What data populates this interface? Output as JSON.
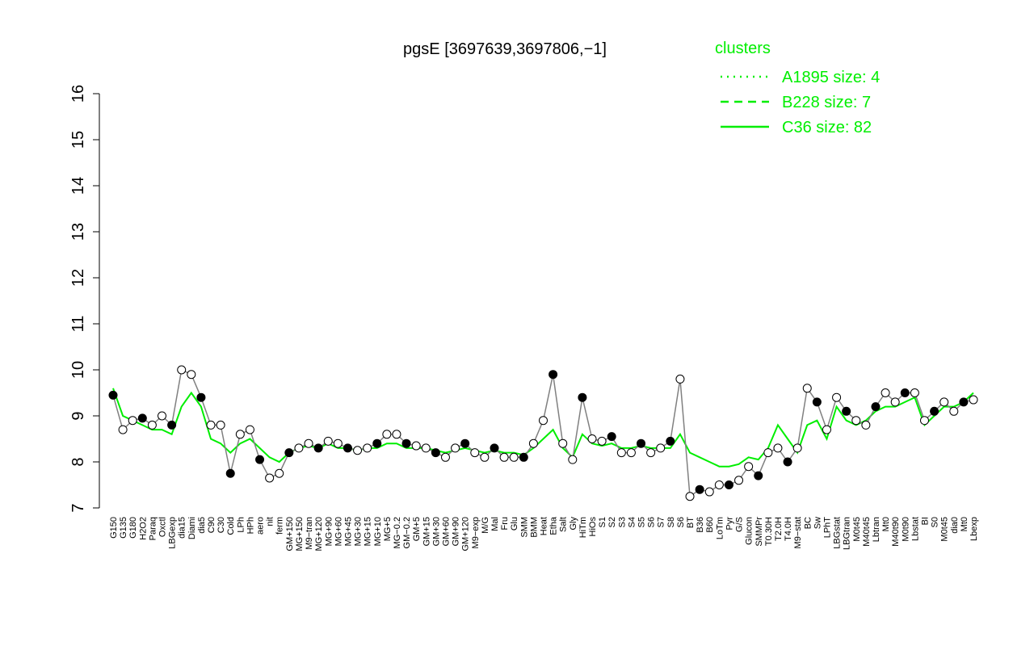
{
  "chart_data": {
    "type": "line",
    "title": "pgsE [3697639,3697806,−1]",
    "categories": [
      "G150",
      "G135",
      "G180",
      "H2O2",
      "Paraq",
      "Oxctl",
      "LBGexp",
      "dia15",
      "Diami",
      "dia5",
      "C90",
      "C30",
      "Cold",
      "LPh",
      "HPh",
      "aero",
      "nit",
      "ferm",
      "GM+150",
      "MG+150",
      "M9−tran",
      "MG+120",
      "MG+90",
      "MG+60",
      "MG+45",
      "MG+30",
      "MG+15",
      "MG+10",
      "MG+5",
      "MG−0.2",
      "GM−0.2",
      "GM+5",
      "GM+15",
      "GM+30",
      "GM+60",
      "GM+90",
      "GM+120",
      "M9−exp",
      "M/G",
      "Mal",
      "Fru",
      "Glu",
      "SMM",
      "BMM",
      "Heat",
      "Etha",
      "Salt",
      "Gly",
      "HiTm",
      "HiOs",
      "S1",
      "S2",
      "S3",
      "S4",
      "S5",
      "S6",
      "S7",
      "S8",
      "S6",
      "BT",
      "B36",
      "B60",
      "LoTm",
      "Pyr",
      "G/S",
      "Glucon",
      "SMMPr",
      "T0.30H",
      "T2.0H",
      "T4.0H",
      "M9−stat",
      "BC",
      "Sw",
      "LPhT",
      "LBGstat",
      "LBGtran",
      "M0t45",
      "M40t45",
      "Lbtran",
      "Mt0",
      "M40t90",
      "M0t90",
      "Lbstat",
      "BI",
      "S0",
      "M0t45",
      "dia0",
      "Mt0",
      "Lbexp"
    ],
    "values": [
      9.45,
      8.7,
      8.9,
      8.95,
      8.8,
      9.0,
      8.8,
      10.0,
      9.9,
      9.4,
      8.8,
      8.8,
      7.75,
      8.6,
      8.7,
      8.05,
      7.65,
      7.75,
      8.2,
      8.3,
      8.4,
      8.3,
      8.45,
      8.4,
      8.3,
      8.25,
      8.3,
      8.4,
      8.6,
      8.6,
      8.4,
      8.35,
      8.3,
      8.2,
      8.1,
      8.3,
      8.4,
      8.2,
      8.1,
      8.3,
      8.1,
      8.1,
      8.1,
      8.4,
      8.9,
      9.9,
      8.4,
      8.05,
      9.4,
      8.5,
      8.45,
      8.55,
      8.2,
      8.2,
      8.4,
      8.2,
      8.3,
      8.45,
      9.8,
      7.25,
      7.4,
      7.35,
      7.5,
      7.5,
      7.6,
      7.9,
      7.7,
      8.2,
      8.3,
      8.0,
      8.3,
      9.6,
      9.3,
      8.7,
      9.4,
      9.1,
      8.9,
      8.8,
      9.2,
      9.5,
      9.3,
      9.5,
      9.5,
      8.9,
      9.1,
      9.3,
      9.1,
      9.3,
      9.35
    ],
    "color": "#808080",
    "series": [
      {
        "name": "A1895 size: 4",
        "color": "#00ee00",
        "dash": "dotted"
      },
      {
        "name": "B228 size: 7",
        "color": "#00ee00",
        "dash": "dashed"
      },
      {
        "name": "C36 size: 82",
        "color": "#00ee00",
        "dash": "solid",
        "values": [
          9.6,
          9.0,
          8.9,
          8.8,
          8.7,
          8.7,
          8.6,
          9.2,
          9.5,
          9.2,
          8.5,
          8.4,
          8.2,
          8.4,
          8.5,
          8.3,
          8.1,
          8.0,
          8.2,
          8.3,
          8.35,
          8.3,
          8.4,
          8.3,
          8.3,
          8.25,
          8.3,
          8.3,
          8.4,
          8.4,
          8.3,
          8.3,
          8.3,
          8.25,
          8.2,
          8.25,
          8.3,
          8.25,
          8.2,
          8.25,
          8.2,
          8.2,
          8.15,
          8.3,
          8.5,
          8.7,
          8.3,
          8.1,
          8.6,
          8.4,
          8.35,
          8.4,
          8.3,
          8.3,
          8.35,
          8.3,
          8.3,
          8.3,
          8.6,
          8.2,
          8.1,
          8.0,
          7.9,
          7.9,
          7.95,
          8.1,
          8.05,
          8.3,
          8.8,
          8.5,
          8.2,
          8.8,
          8.9,
          8.5,
          9.2,
          8.9,
          8.8,
          8.9,
          9.1,
          9.2,
          9.2,
          9.3,
          9.4,
          8.8,
          9.0,
          9.2,
          9.2,
          9.3,
          9.5
        ]
      }
    ],
    "legend_title": "clusters",
    "legend_position": "top-right",
    "ylim": [
      7,
      16
    ],
    "yticks": [
      7,
      8,
      9,
      10,
      11,
      12,
      13,
      14,
      15,
      16
    ]
  }
}
